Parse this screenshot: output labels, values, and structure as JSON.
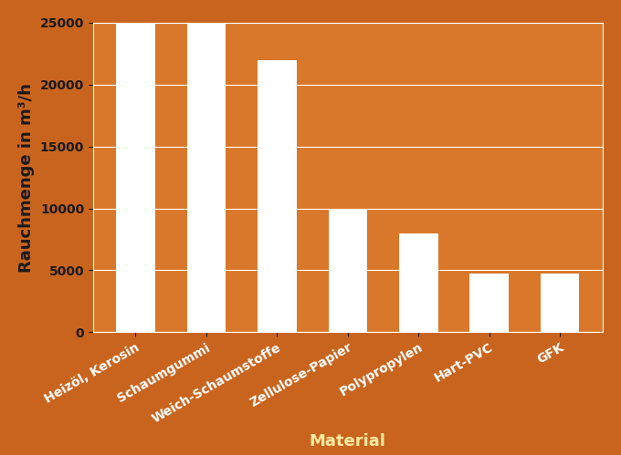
{
  "chart_data": {
    "type": "bar",
    "categories": [
      "Heizöl, Kerosin",
      "Schaumgummi",
      "Weich-Schaumstoffe",
      "Zellulose-Papier",
      "Polypropylen",
      "Hart-PVC",
      "GFK"
    ],
    "values": [
      25000,
      25000,
      22000,
      10000,
      8000,
      4700,
      4700
    ],
    "color": "#ffffff",
    "x_label": "Material",
    "y_label": "Rauchmenge in m³/h",
    "ylim": [
      0,
      25000
    ],
    "yticks": [
      0,
      5000,
      10000,
      15000,
      20000,
      25000
    ],
    "grid": true
  }
}
